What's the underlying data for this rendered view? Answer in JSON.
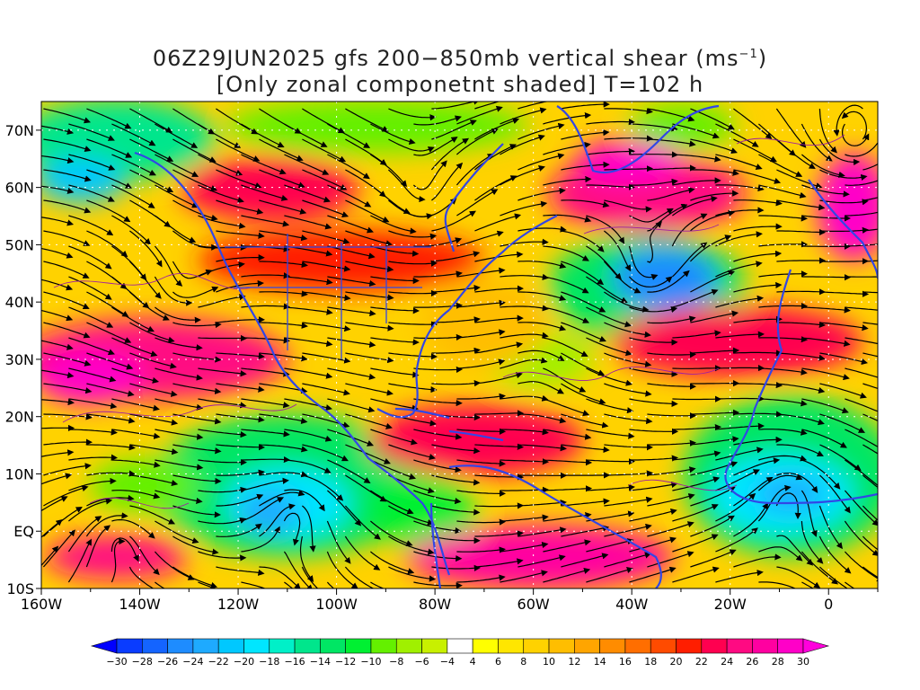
{
  "title": {
    "line1_pre": "06Z29JUN2025 gfs 200−850mb vertical shear (ms",
    "line1_sup": "−1",
    "line1_post": ")",
    "line2": "[Only zonal componetnt shaded] T=102 h"
  },
  "axes": {
    "x_labels": [
      "160W",
      "140W",
      "120W",
      "100W",
      "80W",
      "60W",
      "40W",
      "20W",
      "0"
    ],
    "y_labels": [
      "70N",
      "60N",
      "50N",
      "40N",
      "30N",
      "20N",
      "10N",
      "EQ",
      "10S"
    ]
  },
  "colorbar": {
    "labels": [
      "-30",
      "-28",
      "-26",
      "-24",
      "-22",
      "-20",
      "-18",
      "-16",
      "-14",
      "-12",
      "-10",
      "-8",
      "-6",
      "-4",
      "4",
      "6",
      "8",
      "10",
      "12",
      "14",
      "16",
      "18",
      "20",
      "22",
      "24",
      "26",
      "28",
      "30"
    ],
    "colors": [
      "#0000ff",
      "#0a3cff",
      "#1464ff",
      "#1e8cff",
      "#1eaaff",
      "#00c8ff",
      "#00e6ff",
      "#00f0c8",
      "#00e68c",
      "#00e664",
      "#00f032",
      "#64f000",
      "#a0f000",
      "#c8f000",
      "#ffffff",
      "#ffff00",
      "#ffe600",
      "#ffd200",
      "#ffbe00",
      "#ffa500",
      "#ff8c00",
      "#ff6e00",
      "#ff4b00",
      "#ff1e00",
      "#ff0050",
      "#ff0a82",
      "#ff00a0",
      "#ff00c8",
      "#ff00dc"
    ]
  },
  "map_style": {
    "coastline_color": "#3246e6",
    "contour_color": "#a020a0",
    "streamline_color": "#000000",
    "grid_line_color": "#ffffff"
  }
}
